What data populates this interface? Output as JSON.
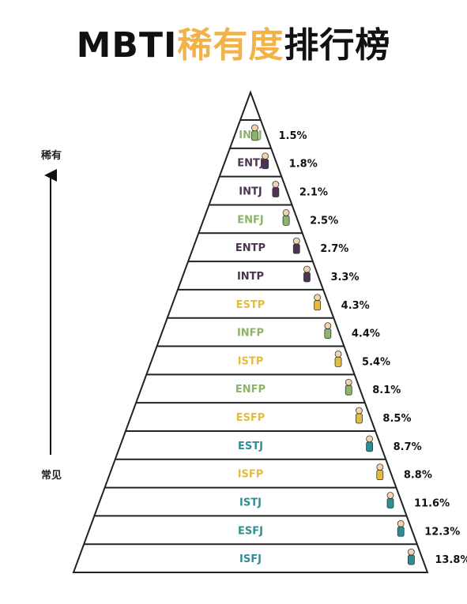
{
  "title": {
    "part1": "MBTI",
    "part2": "稀有度",
    "part3": "排行榜"
  },
  "axis": {
    "top_label": "稀有",
    "bottom_label": "常见"
  },
  "colors": {
    "NF": "#8cb46a",
    "NT": "#4b3553",
    "SP": "#e3bc3e",
    "SJ": "#2f8e95",
    "title_accent": "#f2b24a"
  },
  "chart_data": {
    "type": "bar",
    "title": "MBTI稀有度排行榜",
    "categories": [
      "INFJ",
      "ENTJ",
      "INTJ",
      "ENFJ",
      "ENTP",
      "INTP",
      "ESTP",
      "INFP",
      "ISTP",
      "ENFP",
      "ESFP",
      "ESTJ",
      "ISFP",
      "ISTJ",
      "ESFJ",
      "ISFJ"
    ],
    "values": [
      1.5,
      1.8,
      2.1,
      2.5,
      2.7,
      3.3,
      4.3,
      4.4,
      5.4,
      8.1,
      8.5,
      8.7,
      8.8,
      11.6,
      12.3,
      13.8
    ],
    "labels": [
      "1.5%",
      "1.8%",
      "2.1%",
      "2.5%",
      "2.7%",
      "3.3%",
      "4.3%",
      "4.4%",
      "5.4%",
      "8.1%",
      "8.5%",
      "8.7%",
      "8.8%",
      "11.6%",
      "12.3%",
      "13.8%"
    ],
    "groups": [
      "NF",
      "NT",
      "NT",
      "NF",
      "NT",
      "NT",
      "SP",
      "NF",
      "SP",
      "NF",
      "SP",
      "SJ",
      "SP",
      "SJ",
      "SJ",
      "SJ"
    ],
    "unit": "%"
  }
}
